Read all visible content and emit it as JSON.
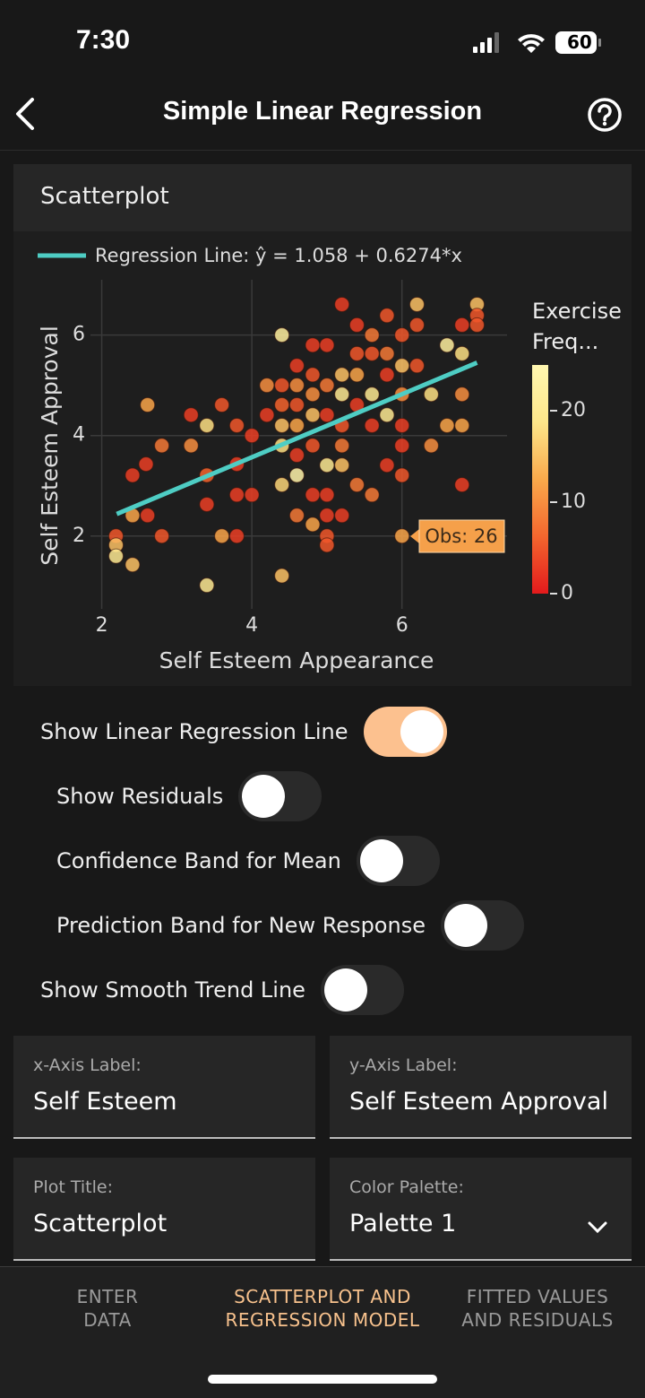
{
  "status_bar": {
    "time": "7:30",
    "battery": "60"
  },
  "header": {
    "title": "Simple Linear Regression"
  },
  "card": {
    "title": "Scatterplot"
  },
  "chart_data": {
    "type": "scatter",
    "x_label": "Self Esteem Appearance",
    "y_label": "Self Esteem Approval",
    "xlim": [
      1.85,
      7.4
    ],
    "ylim": [
      0.55,
      7.1
    ],
    "xticks": [
      2,
      4,
      6
    ],
    "yticks": [
      2,
      4,
      6
    ],
    "grid": true,
    "series": [
      {
        "x": [
          2.19,
          2.19,
          2.19,
          2.41,
          2.41,
          2.41,
          2.59,
          2.61,
          2.61,
          2.8,
          2.8,
          3.19,
          3.19,
          3.4,
          3.4,
          3.4,
          3.4,
          3.6,
          3.6,
          3.8,
          3.8,
          3.8,
          3.8,
          4.0,
          4.0,
          4.2,
          4.2,
          4.4,
          4.4,
          4.4,
          4.4,
          4.4,
          4.4,
          4.4,
          4.6,
          4.6,
          4.6,
          4.6,
          4.6,
          4.6,
          4.6,
          4.81,
          4.81,
          4.81,
          4.81,
          4.81,
          4.81,
          4.81,
          5.0,
          5.0,
          5.0,
          5.0,
          5.0,
          5.0,
          5.0,
          5.0,
          5.2,
          5.2,
          5.2,
          5.2,
          5.2,
          5.2,
          5.2,
          5.4,
          5.4,
          5.4,
          5.4,
          5.4,
          5.6,
          5.6,
          5.6,
          5.6,
          5.6,
          5.8,
          5.8,
          5.8,
          5.8,
          5.8,
          6.0,
          6.0,
          6.0,
          6.0,
          6.0,
          6.0,
          6.0,
          6.2,
          6.2,
          6.2,
          6.39,
          6.39,
          6.6,
          6.6,
          6.8,
          6.8,
          6.8,
          6.8,
          6.8,
          7.0,
          7.0,
          7.0
        ],
        "y": [
          2.0,
          1.82,
          1.6,
          1.43,
          2.41,
          3.21,
          3.43,
          4.61,
          2.41,
          3.8,
          2.0,
          4.41,
          3.8,
          4.2,
          3.21,
          2.63,
          1.02,
          4.61,
          2.0,
          4.2,
          3.43,
          2.82,
          2.0,
          4.0,
          2.82,
          5.0,
          4.41,
          6.0,
          5.0,
          4.61,
          4.2,
          3.8,
          3.02,
          1.21,
          5.39,
          5.0,
          4.61,
          4.2,
          3.61,
          3.21,
          2.41,
          5.8,
          5.21,
          4.82,
          4.41,
          3.8,
          2.82,
          2.23,
          5.8,
          5.0,
          4.41,
          3.41,
          2.82,
          2.41,
          2.0,
          1.82,
          6.61,
          5.21,
          4.82,
          4.2,
          3.8,
          3.41,
          2.41,
          6.2,
          5.63,
          5.21,
          4.61,
          3.02,
          6.0,
          5.63,
          4.82,
          4.2,
          2.82,
          6.39,
          5.63,
          5.21,
          4.41,
          3.41,
          6.0,
          5.39,
          4.82,
          4.2,
          3.8,
          3.21,
          2.0,
          6.61,
          6.2,
          5.39,
          4.82,
          3.8,
          5.8,
          4.2,
          6.2,
          5.63,
          4.82,
          4.2,
          3.02,
          6.61,
          6.39,
          6.2
        ],
        "color_values": [
          5,
          15,
          20,
          15,
          12,
          3,
          3,
          12,
          3,
          8,
          5,
          3,
          10,
          18,
          6,
          3,
          20,
          5,
          12,
          5,
          3,
          3,
          3,
          3,
          3,
          10,
          3,
          22,
          5,
          6,
          15,
          18,
          17,
          15,
          3,
          10,
          5,
          12,
          3,
          24,
          8,
          3,
          5,
          10,
          15,
          5,
          3,
          12,
          3,
          8,
          3,
          20,
          3,
          3,
          5,
          5,
          3,
          15,
          20,
          5,
          8,
          15,
          3,
          3,
          5,
          12,
          3,
          8,
          8,
          5,
          20,
          3,
          8,
          5,
          8,
          3,
          20,
          3,
          5,
          15,
          10,
          3,
          3,
          5,
          12,
          15,
          5,
          5,
          18,
          10,
          22,
          12,
          3,
          18,
          10,
          12,
          3,
          15,
          5,
          5
        ]
      }
    ],
    "colorbar": {
      "title": "Exercise Freq...",
      "lim": [
        0,
        25
      ],
      "ticks": [
        0,
        10,
        20
      ],
      "colors": [
        "#e31a1c",
        "#f4662e",
        "#f9a94b",
        "#fde68a",
        "#fff7b0"
      ]
    },
    "regression": {
      "label": "Regression Line: ŷ = 1.058 + 0.6274*x",
      "intercept": 1.058,
      "slope": 0.6274,
      "x_range": [
        2.2,
        7.0
      ],
      "color": "#4ecdc4"
    },
    "tooltip": "Obs: 26"
  },
  "toggles": [
    {
      "label": "Show Linear Regression Line",
      "on": true
    },
    {
      "label": "Show Residuals",
      "on": false
    },
    {
      "label": "Confidence Band for Mean",
      "on": false
    },
    {
      "label": "Prediction Band for New Response",
      "on": false
    },
    {
      "label": "Show Smooth Trend Line",
      "on": false
    }
  ],
  "fields": [
    {
      "label": "x-Axis Label:",
      "value": "Self Esteem"
    },
    {
      "label": "y-Axis Label:",
      "value": "Self Esteem Approval"
    },
    {
      "label": "Plot Title:",
      "value": "Scatterplot"
    },
    {
      "label": "Color Palette:",
      "value": "Palette 1"
    }
  ],
  "tabs": [
    {
      "label": "ENTER DATA",
      "active": false
    },
    {
      "label": "SCATTERPLOT AND REGRESSION MODEL",
      "active": true
    },
    {
      "label": "FITTED VALUES AND RESIDUALS",
      "active": false
    }
  ]
}
